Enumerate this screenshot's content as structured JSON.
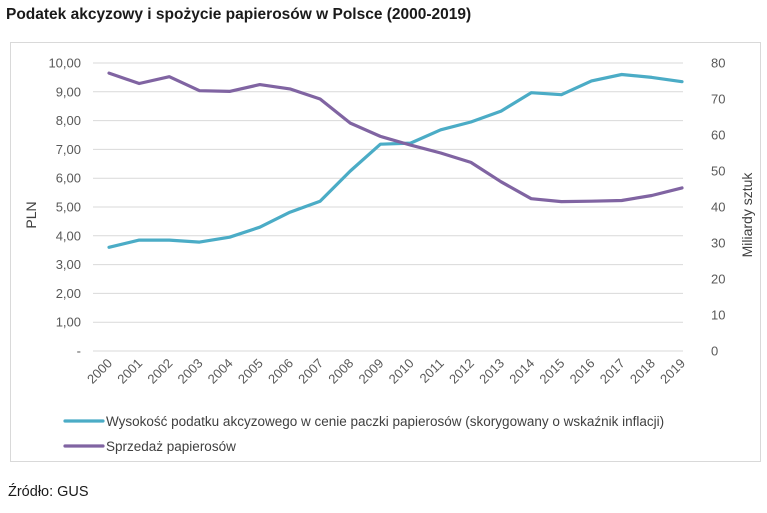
{
  "title": "Podatek akcyzowy i spożycie papierosów w Polsce (2000-2019)",
  "source": "Źródło: GUS",
  "chart_data": {
    "type": "line",
    "categories": [
      "2000",
      "2001",
      "2002",
      "2003",
      "2004",
      "2005",
      "2006",
      "2007",
      "2008",
      "2009",
      "2010",
      "2011",
      "2012",
      "2013",
      "2014",
      "2015",
      "2016",
      "2017",
      "2018",
      "2019"
    ],
    "ylabel_left": "PLN",
    "ylabel_right": "Miliardy sztuk",
    "ylim_left": [
      0,
      10
    ],
    "ylim_right": [
      0,
      80
    ],
    "yticks_left": [
      "-",
      "1,00",
      "2,00",
      "3,00",
      "4,00",
      "5,00",
      "6,00",
      "7,00",
      "8,00",
      "9,00",
      "10,00"
    ],
    "yticks_right": [
      "0",
      "10",
      "20",
      "30",
      "40",
      "50",
      "60",
      "70",
      "80"
    ],
    "grid": true,
    "legend_position": "bottom",
    "series": [
      {
        "name": "Wysokość podatku akcyzowego w cenie paczki papierosów (skorygowany o wskaźnik inflacji)",
        "axis": "left",
        "color": "#4bacc6",
        "values": [
          3.6,
          3.85,
          3.85,
          3.78,
          3.95,
          4.3,
          4.82,
          5.2,
          6.25,
          7.18,
          7.22,
          7.68,
          7.95,
          8.33,
          8.97,
          8.9,
          9.38,
          9.6,
          9.5,
          9.35
        ]
      },
      {
        "name": "Sprzedaż papierosów",
        "axis": "right",
        "color": "#8064a2",
        "values": [
          77.2,
          74.3,
          76.2,
          72.3,
          72.1,
          74.0,
          72.8,
          70.0,
          63.3,
          59.6,
          57.2,
          55.0,
          52.4,
          47.0,
          42.3,
          41.5,
          41.6,
          41.8,
          43.2,
          45.3
        ]
      }
    ]
  }
}
